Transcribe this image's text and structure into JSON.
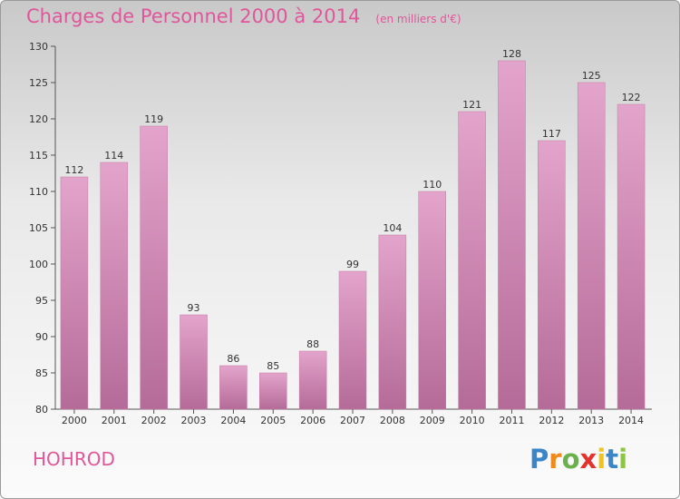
{
  "header": {
    "title": "Charges de Personnel 2000 à 2014",
    "subtitle": "(en milliers d'€)"
  },
  "footer": {
    "commune": "HOHROD",
    "logo_letters": [
      "P",
      "r",
      "o",
      "x",
      "i",
      "t",
      "i"
    ],
    "logo_colors": [
      "#3a86c8",
      "#f08a1c",
      "#6ab04c",
      "#e2332c",
      "#f0c419",
      "#3a86c8",
      "#8cc63f"
    ]
  },
  "colors": {
    "bar_top": "#e3a4cb",
    "bar_bottom": "#b56b98",
    "bar_edge": "#c47aa6",
    "accent": "#e0569a"
  },
  "chart_data": {
    "type": "bar",
    "categories": [
      "2000",
      "2001",
      "2002",
      "2003",
      "2004",
      "2005",
      "2006",
      "2007",
      "2008",
      "2009",
      "2010",
      "2011",
      "2012",
      "2013",
      "2014"
    ],
    "values": [
      112,
      114,
      119,
      93,
      86,
      85,
      88,
      99,
      104,
      110,
      121,
      128,
      117,
      125,
      122
    ],
    "ylim": [
      80,
      130
    ],
    "yticks": [
      80,
      85,
      90,
      95,
      100,
      105,
      110,
      115,
      120,
      125,
      130
    ],
    "xlabel": "",
    "ylabel": "",
    "grid": false,
    "legend": "none"
  }
}
